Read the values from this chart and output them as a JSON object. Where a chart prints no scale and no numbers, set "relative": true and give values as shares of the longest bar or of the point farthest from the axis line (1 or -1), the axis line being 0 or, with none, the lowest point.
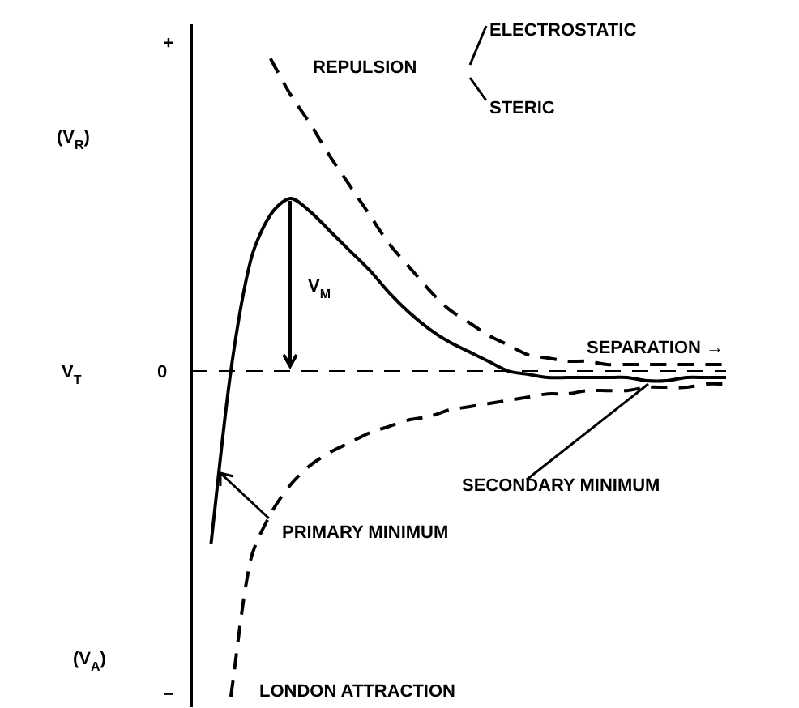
{
  "chart_data": {
    "type": "line",
    "relative": true,
    "xlabel": "SEPARATION →",
    "legend": false,
    "grid": false,
    "ref_lines": [
      {
        "axis": "y",
        "value": 0,
        "color": "#000000",
        "line_style": "dashed"
      }
    ],
    "categories": [
      null,
      null,
      null,
      null,
      null,
      null,
      null,
      null,
      null,
      null,
      null,
      null,
      null,
      null,
      null,
      null,
      null,
      null,
      null,
      null,
      null,
      null,
      null,
      null,
      null,
      null,
      null,
      null
    ],
    "series": [
      {
        "name": "REPULSION",
        "color": "#000000",
        "line_style": "dashed",
        "values": [
          null,
          null,
          null,
          null,
          0.96,
          0.85,
          0.76,
          0.66,
          0.57,
          0.48,
          0.39,
          0.32,
          0.25,
          0.19,
          0.15,
          0.11,
          0.08,
          0.05,
          0.04,
          0.03,
          0.03,
          0.02,
          0.02,
          0.02,
          0.02,
          0.02,
          0.02,
          0.02
        ]
      },
      {
        "name": "LONDON ATTRACTION",
        "color": "#000000",
        "line_style": "dashed",
        "values": [
          null,
          null,
          -1,
          -0.58,
          -0.44,
          -0.35,
          -0.29,
          -0.25,
          -0.22,
          -0.19,
          -0.17,
          -0.15,
          -0.14,
          -0.12,
          -0.11,
          -0.1,
          -0.09,
          -0.08,
          -0.07,
          -0.07,
          -0.06,
          -0.06,
          -0.06,
          -0.05,
          -0.05,
          -0.05,
          -0.04,
          -0.04
        ]
      },
      {
        "color": "#000000",
        "line_style": "solid",
        "values": [
          null,
          -0.53,
          0,
          0.34,
          0.48,
          0.53,
          0.49,
          0.43,
          0.37,
          0.31,
          0.24,
          0.18,
          0.13,
          0.09,
          0.06,
          0.03,
          0,
          -0.01,
          -0.02,
          -0.02,
          -0.02,
          -0.02,
          -0.02,
          -0.03,
          -0.03,
          -0.02,
          -0.02,
          -0.02
        ]
      }
    ],
    "annotations": [
      "ELECTROSTATIC",
      "STERIC",
      "V$_{M}$",
      "PRIMARY MINIMUM",
      "SECONDARY MINIMUM",
      "(V$_{R}$)",
      "(V$_{A}$)",
      "+",
      "0",
      "−",
      "V$_{T}$"
    ]
  }
}
